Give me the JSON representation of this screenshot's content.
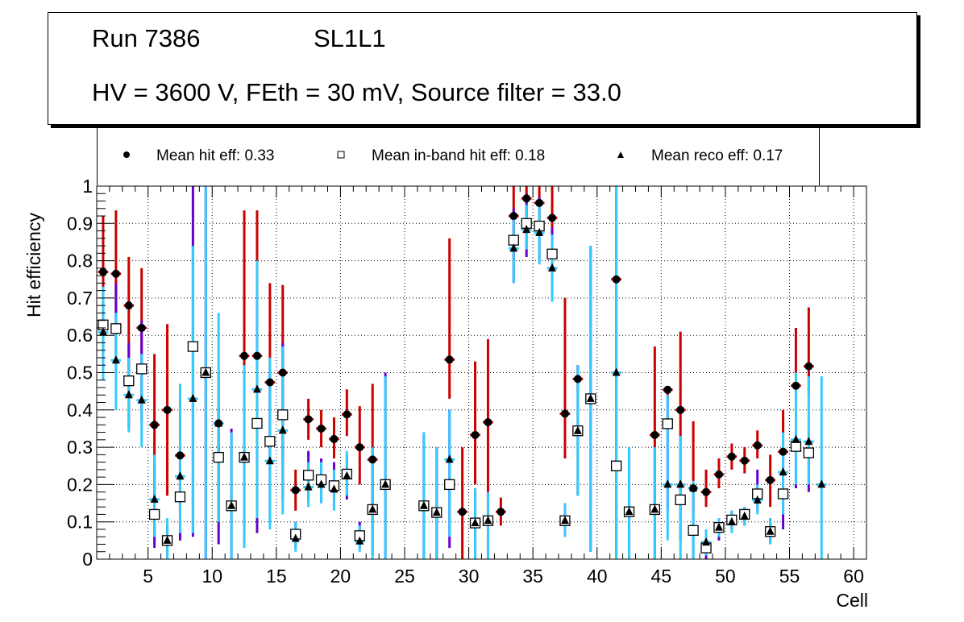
{
  "title": {
    "run": "Run 7386",
    "layer": "SL1L1",
    "conditions": "HV = 3600 V, FEth = 30 mV, Source filter = 33.0"
  },
  "legend": [
    {
      "marker": "filled-circle",
      "label": "Mean hit  eff: 0.33"
    },
    {
      "marker": "open-square",
      "label": "Mean in-band hit eff: 0.18"
    },
    {
      "marker": "filled-triangle",
      "label": "Mean reco eff: 0.17"
    }
  ],
  "colors": {
    "hit_error": "#cc0000",
    "inband_error": "#6600cc",
    "reco_error": "#33ccff",
    "marker": "#000000",
    "grid": "#000000"
  },
  "chart_data": {
    "type": "scatter",
    "title": "Run 7386 SL1L1 — HV = 3600 V, FEth = 30 mV, Source filter = 33.0",
    "xlabel": "Cell",
    "ylabel": "Hit efficiency",
    "xlim": [
      1,
      61
    ],
    "ylim": [
      0,
      1
    ],
    "xticks": [
      5,
      10,
      15,
      20,
      25,
      30,
      35,
      40,
      45,
      50,
      55,
      60
    ],
    "yticks": [
      0,
      0.1,
      0.2,
      0.3,
      0.4,
      0.5,
      0.6,
      0.7,
      0.8,
      0.9,
      1
    ],
    "ytick_labels": [
      "0",
      "0.1",
      "0.2",
      "0.3",
      "0.4",
      "0.5",
      "0.6",
      "0.7",
      "0.8",
      "0.9",
      "1"
    ],
    "grid": true,
    "legend_position": "top",
    "series": [
      {
        "name": "Mean hit  eff: 0.33",
        "marker": "filled-circle",
        "error_color": "#cc0000",
        "points": [
          {
            "x": 1.5,
            "y": 0.77,
            "lo": 0.62,
            "hi": 0.92
          },
          {
            "x": 2.5,
            "y": 0.765,
            "lo": 0.56,
            "hi": 0.935
          },
          {
            "x": 3.5,
            "y": 0.68,
            "lo": 0.5,
            "hi": 0.81
          },
          {
            "x": 4.5,
            "y": 0.62,
            "lo": 0.5,
            "hi": 0.78
          },
          {
            "x": 5.5,
            "y": 0.36,
            "lo": 0.17,
            "hi": 0.55
          },
          {
            "x": 6.5,
            "y": 0.4,
            "lo": 0.17,
            "hi": 0.63
          },
          {
            "x": 7.5,
            "y": 0.278,
            "lo": 0.13,
            "hi": 0.43
          },
          {
            "x": 8.5,
            "y": 0.57,
            "lo": 0.56,
            "hi": 0.58
          },
          {
            "x": 9.5,
            "y": 0.5,
            "lo": 0.49,
            "hi": 0.51
          },
          {
            "x": 10.5,
            "y": 0.364,
            "lo": 0.1,
            "hi": 0.41
          },
          {
            "x": 11.5,
            "y": 0.143,
            "lo": 0.14,
            "hi": 0.15
          },
          {
            "x": 12.5,
            "y": 0.545,
            "lo": 0.49,
            "hi": 0.935
          },
          {
            "x": 13.5,
            "y": 0.545,
            "lo": 0.49,
            "hi": 0.935
          },
          {
            "x": 14.5,
            "y": 0.474,
            "lo": 0.28,
            "hi": 0.74
          },
          {
            "x": 15.5,
            "y": 0.5,
            "lo": 0.26,
            "hi": 0.735
          },
          {
            "x": 16.5,
            "y": 0.185,
            "lo": 0.13,
            "hi": 0.24
          },
          {
            "x": 17.5,
            "y": 0.375,
            "lo": 0.32,
            "hi": 0.43
          },
          {
            "x": 18.5,
            "y": 0.35,
            "lo": 0.3,
            "hi": 0.4
          },
          {
            "x": 19.5,
            "y": 0.322,
            "lo": 0.27,
            "hi": 0.38
          },
          {
            "x": 20.5,
            "y": 0.388,
            "lo": 0.33,
            "hi": 0.455
          },
          {
            "x": 21.5,
            "y": 0.3,
            "lo": 0.2,
            "hi": 0.41
          },
          {
            "x": 22.5,
            "y": 0.267,
            "lo": 0.14,
            "hi": 0.47
          },
          {
            "x": 28.5,
            "y": 0.535,
            "lo": 0.43,
            "hi": 0.86
          },
          {
            "x": 29.5,
            "y": 0.127,
            "lo": 0.0,
            "hi": 0.3
          },
          {
            "x": 30.5,
            "y": 0.333,
            "lo": 0.2,
            "hi": 0.53
          },
          {
            "x": 31.5,
            "y": 0.367,
            "lo": 0.17,
            "hi": 0.59
          },
          {
            "x": 32.5,
            "y": 0.127,
            "lo": 0.09,
            "hi": 0.165
          },
          {
            "x": 33.5,
            "y": 0.92,
            "lo": 0.8,
            "hi": 1.0
          },
          {
            "x": 34.5,
            "y": 0.967,
            "lo": 0.92,
            "hi": 1.0
          },
          {
            "x": 35.5,
            "y": 0.955,
            "lo": 0.9,
            "hi": 1.0
          },
          {
            "x": 36.5,
            "y": 0.915,
            "lo": 0.84,
            "hi": 1.0
          },
          {
            "x": 37.5,
            "y": 0.39,
            "lo": 0.27,
            "hi": 0.7
          },
          {
            "x": 38.5,
            "y": 0.483,
            "lo": 0.45,
            "hi": 0.52
          },
          {
            "x": 39.5,
            "y": 0.43,
            "lo": 0.42,
            "hi": 0.44
          },
          {
            "x": 41.5,
            "y": 0.75,
            "lo": 0.74,
            "hi": 0.76
          },
          {
            "x": 44.5,
            "y": 0.333,
            "lo": 0.12,
            "hi": 0.57
          },
          {
            "x": 45.5,
            "y": 0.454,
            "lo": 0.44,
            "hi": 0.46
          },
          {
            "x": 46.5,
            "y": 0.4,
            "lo": 0.33,
            "hi": 0.61
          },
          {
            "x": 47.5,
            "y": 0.19,
            "lo": 0.13,
            "hi": 0.37
          },
          {
            "x": 48.5,
            "y": 0.18,
            "lo": 0.14,
            "hi": 0.24
          },
          {
            "x": 49.5,
            "y": 0.227,
            "lo": 0.19,
            "hi": 0.27
          },
          {
            "x": 50.5,
            "y": 0.275,
            "lo": 0.24,
            "hi": 0.31
          },
          {
            "x": 51.5,
            "y": 0.264,
            "lo": 0.23,
            "hi": 0.3
          },
          {
            "x": 52.5,
            "y": 0.305,
            "lo": 0.27,
            "hi": 0.345
          },
          {
            "x": 53.5,
            "y": 0.212,
            "lo": 0.14,
            "hi": 0.28
          },
          {
            "x": 54.5,
            "y": 0.288,
            "lo": 0.26,
            "hi": 0.4
          },
          {
            "x": 55.5,
            "y": 0.465,
            "lo": 0.44,
            "hi": 0.62
          },
          {
            "x": 56.5,
            "y": 0.517,
            "lo": 0.44,
            "hi": 0.675
          }
        ]
      },
      {
        "name": "Mean in-band hit eff: 0.18",
        "marker": "open-square",
        "error_color": "#6600cc",
        "points": [
          {
            "x": 1.5,
            "y": 0.628,
            "lo": 0.5,
            "hi": 0.73
          },
          {
            "x": 2.5,
            "y": 0.618,
            "lo": 0.5,
            "hi": 0.74
          },
          {
            "x": 3.5,
            "y": 0.478,
            "lo": 0.35,
            "hi": 0.58
          },
          {
            "x": 4.5,
            "y": 0.51,
            "lo": 0.37,
            "hi": 0.64
          },
          {
            "x": 5.5,
            "y": 0.12,
            "lo": 0.03,
            "hi": 0.25
          },
          {
            "x": 6.5,
            "y": 0.05,
            "lo": 0.0,
            "hi": 0.1
          },
          {
            "x": 7.5,
            "y": 0.167,
            "lo": 0.05,
            "hi": 0.3
          },
          {
            "x": 8.5,
            "y": 0.57,
            "lo": 0.06,
            "hi": 1.0
          },
          {
            "x": 9.5,
            "y": 0.5,
            "lo": 0.0,
            "hi": 1.0
          },
          {
            "x": 10.5,
            "y": 0.273,
            "lo": 0.04,
            "hi": 0.5
          },
          {
            "x": 11.5,
            "y": 0.143,
            "lo": 0.0,
            "hi": 0.35
          },
          {
            "x": 12.5,
            "y": 0.273,
            "lo": 0.05,
            "hi": 0.5
          },
          {
            "x": 13.5,
            "y": 0.364,
            "lo": 0.07,
            "hi": 0.7
          },
          {
            "x": 14.5,
            "y": 0.316,
            "lo": 0.1,
            "hi": 0.5
          },
          {
            "x": 15.5,
            "y": 0.387,
            "lo": 0.16,
            "hi": 0.58
          },
          {
            "x": 16.5,
            "y": 0.067,
            "lo": 0.03,
            "hi": 0.1
          },
          {
            "x": 17.5,
            "y": 0.225,
            "lo": 0.16,
            "hi": 0.29
          },
          {
            "x": 18.5,
            "y": 0.213,
            "lo": 0.15,
            "hi": 0.27
          },
          {
            "x": 19.5,
            "y": 0.197,
            "lo": 0.14,
            "hi": 0.26
          },
          {
            "x": 20.5,
            "y": 0.228,
            "lo": 0.16,
            "hi": 0.28
          },
          {
            "x": 21.5,
            "y": 0.063,
            "lo": 0.03,
            "hi": 0.1
          },
          {
            "x": 22.5,
            "y": 0.133,
            "lo": 0.01,
            "hi": 0.3
          },
          {
            "x": 23.5,
            "y": 0.2,
            "lo": 0.0,
            "hi": 0.5
          },
          {
            "x": 26.5,
            "y": 0.143,
            "lo": 0.0,
            "hi": 0.34
          },
          {
            "x": 27.5,
            "y": 0.125,
            "lo": 0.0,
            "hi": 0.3
          },
          {
            "x": 28.5,
            "y": 0.2,
            "lo": 0.03,
            "hi": 0.4
          },
          {
            "x": 30.5,
            "y": 0.097,
            "lo": 0.0,
            "hi": 0.19
          },
          {
            "x": 31.5,
            "y": 0.103,
            "lo": 0.0,
            "hi": 0.18
          },
          {
            "x": 33.5,
            "y": 0.855,
            "lo": 0.74,
            "hi": 0.94
          },
          {
            "x": 34.5,
            "y": 0.9,
            "lo": 0.81,
            "hi": 0.98
          },
          {
            "x": 35.5,
            "y": 0.893,
            "lo": 0.8,
            "hi": 0.97
          },
          {
            "x": 36.5,
            "y": 0.818,
            "lo": 0.69,
            "hi": 0.89
          },
          {
            "x": 37.5,
            "y": 0.103,
            "lo": 0.06,
            "hi": 0.15
          },
          {
            "x": 38.5,
            "y": 0.344,
            "lo": 0.17,
            "hi": 0.52
          },
          {
            "x": 39.5,
            "y": 0.43,
            "lo": 0.02,
            "hi": 0.84
          },
          {
            "x": 41.5,
            "y": 0.25,
            "lo": 0.0,
            "hi": 1.0
          },
          {
            "x": 42.5,
            "y": 0.127,
            "lo": 0.0,
            "hi": 0.3
          },
          {
            "x": 44.5,
            "y": 0.133,
            "lo": 0.0,
            "hi": 0.3
          },
          {
            "x": 45.5,
            "y": 0.363,
            "lo": 0.13,
            "hi": 0.44
          },
          {
            "x": 46.5,
            "y": 0.159,
            "lo": 0.05,
            "hi": 0.33
          },
          {
            "x": 47.5,
            "y": 0.077,
            "lo": 0.0,
            "hi": 0.2
          },
          {
            "x": 48.5,
            "y": 0.03,
            "lo": 0.0,
            "hi": 0.06
          },
          {
            "x": 49.5,
            "y": 0.085,
            "lo": 0.05,
            "hi": 0.11
          },
          {
            "x": 50.5,
            "y": 0.105,
            "lo": 0.08,
            "hi": 0.13
          },
          {
            "x": 51.5,
            "y": 0.12,
            "lo": 0.09,
            "hi": 0.14
          },
          {
            "x": 52.5,
            "y": 0.175,
            "lo": 0.13,
            "hi": 0.24
          },
          {
            "x": 53.5,
            "y": 0.074,
            "lo": 0.04,
            "hi": 0.11
          },
          {
            "x": 54.5,
            "y": 0.175,
            "lo": 0.08,
            "hi": 0.34
          },
          {
            "x": 55.5,
            "y": 0.302,
            "lo": 0.19,
            "hi": 0.32
          },
          {
            "x": 56.5,
            "y": 0.285,
            "lo": 0.18,
            "hi": 0.31
          }
        ]
      },
      {
        "name": "Mean reco eff: 0.17",
        "marker": "filled-triangle",
        "error_color": "#33ccff",
        "points": [
          {
            "x": 1.5,
            "y": 0.608,
            "lo": 0.48,
            "hi": 0.73
          },
          {
            "x": 2.5,
            "y": 0.533,
            "lo": 0.4,
            "hi": 0.66
          },
          {
            "x": 3.5,
            "y": 0.44,
            "lo": 0.34,
            "hi": 0.54
          },
          {
            "x": 4.5,
            "y": 0.426,
            "lo": 0.3,
            "hi": 0.55
          },
          {
            "x": 5.5,
            "y": 0.16,
            "lo": 0.06,
            "hi": 0.28
          },
          {
            "x": 6.5,
            "y": 0.05,
            "lo": 0.0,
            "hi": 0.11
          },
          {
            "x": 7.5,
            "y": 0.222,
            "lo": 0.07,
            "hi": 0.47
          },
          {
            "x": 8.5,
            "y": 0.43,
            "lo": 0.07,
            "hi": 0.84
          },
          {
            "x": 9.5,
            "y": 0.5,
            "lo": 0.0,
            "hi": 1.0
          },
          {
            "x": 10.5,
            "y": 0.364,
            "lo": 0.1,
            "hi": 0.66
          },
          {
            "x": 11.5,
            "y": 0.143,
            "lo": 0.0,
            "hi": 0.34
          },
          {
            "x": 12.5,
            "y": 0.273,
            "lo": 0.03,
            "hi": 0.52
          },
          {
            "x": 13.5,
            "y": 0.455,
            "lo": 0.11,
            "hi": 0.8
          },
          {
            "x": 14.5,
            "y": 0.263,
            "lo": 0.08,
            "hi": 0.54
          },
          {
            "x": 15.5,
            "y": 0.345,
            "lo": 0.12,
            "hi": 0.57
          },
          {
            "x": 16.5,
            "y": 0.055,
            "lo": 0.02,
            "hi": 0.1
          },
          {
            "x": 17.5,
            "y": 0.193,
            "lo": 0.14,
            "hi": 0.26
          },
          {
            "x": 18.5,
            "y": 0.2,
            "lo": 0.15,
            "hi": 0.26
          },
          {
            "x": 19.5,
            "y": 0.187,
            "lo": 0.13,
            "hi": 0.24
          },
          {
            "x": 20.5,
            "y": 0.223,
            "lo": 0.17,
            "hi": 0.29
          },
          {
            "x": 21.5,
            "y": 0.048,
            "lo": 0.02,
            "hi": 0.09
          },
          {
            "x": 22.5,
            "y": 0.133,
            "lo": 0.0,
            "hi": 0.3
          },
          {
            "x": 23.5,
            "y": 0.2,
            "lo": 0.0,
            "hi": 0.49
          },
          {
            "x": 26.5,
            "y": 0.143,
            "lo": 0.0,
            "hi": 0.34
          },
          {
            "x": 27.5,
            "y": 0.125,
            "lo": 0.0,
            "hi": 0.3
          },
          {
            "x": 28.5,
            "y": 0.267,
            "lo": 0.06,
            "hi": 0.4
          },
          {
            "x": 30.5,
            "y": 0.097,
            "lo": 0.0,
            "hi": 0.19
          },
          {
            "x": 31.5,
            "y": 0.103,
            "lo": 0.0,
            "hi": 0.18
          },
          {
            "x": 33.5,
            "y": 0.833,
            "lo": 0.74,
            "hi": 0.93
          },
          {
            "x": 34.5,
            "y": 0.883,
            "lo": 0.83,
            "hi": 0.95
          },
          {
            "x": 35.5,
            "y": 0.875,
            "lo": 0.79,
            "hi": 0.96
          },
          {
            "x": 36.5,
            "y": 0.78,
            "lo": 0.69,
            "hi": 0.87
          },
          {
            "x": 37.5,
            "y": 0.103,
            "lo": 0.06,
            "hi": 0.15
          },
          {
            "x": 38.5,
            "y": 0.344,
            "lo": 0.17,
            "hi": 0.52
          },
          {
            "x": 39.5,
            "y": 0.43,
            "lo": 0.02,
            "hi": 0.84
          },
          {
            "x": 41.5,
            "y": 0.5,
            "lo": 0.0,
            "hi": 1.0
          },
          {
            "x": 42.5,
            "y": 0.127,
            "lo": 0.0,
            "hi": 0.3
          },
          {
            "x": 44.5,
            "y": 0.133,
            "lo": 0.0,
            "hi": 0.3
          },
          {
            "x": 45.5,
            "y": 0.2,
            "lo": 0.05,
            "hi": 0.44
          },
          {
            "x": 46.5,
            "y": 0.2,
            "lo": 0.0,
            "hi": 0.33
          },
          {
            "x": 47.5,
            "y": 0.19,
            "lo": 0.0,
            "hi": 0.21
          },
          {
            "x": 48.5,
            "y": 0.045,
            "lo": 0.01,
            "hi": 0.08
          },
          {
            "x": 49.5,
            "y": 0.085,
            "lo": 0.06,
            "hi": 0.11
          },
          {
            "x": 50.5,
            "y": 0.1,
            "lo": 0.07,
            "hi": 0.13
          },
          {
            "x": 51.5,
            "y": 0.115,
            "lo": 0.09,
            "hi": 0.14
          },
          {
            "x": 52.5,
            "y": 0.158,
            "lo": 0.12,
            "hi": 0.2
          },
          {
            "x": 53.5,
            "y": 0.074,
            "lo": 0.04,
            "hi": 0.11
          },
          {
            "x": 54.5,
            "y": 0.233,
            "lo": 0.12,
            "hi": 0.34
          },
          {
            "x": 55.5,
            "y": 0.32,
            "lo": 0.2,
            "hi": 0.5
          },
          {
            "x": 56.5,
            "y": 0.315,
            "lo": 0.2,
            "hi": 0.49
          },
          {
            "x": 57.5,
            "y": 0.2,
            "lo": 0.0,
            "hi": 0.49
          }
        ]
      }
    ]
  }
}
